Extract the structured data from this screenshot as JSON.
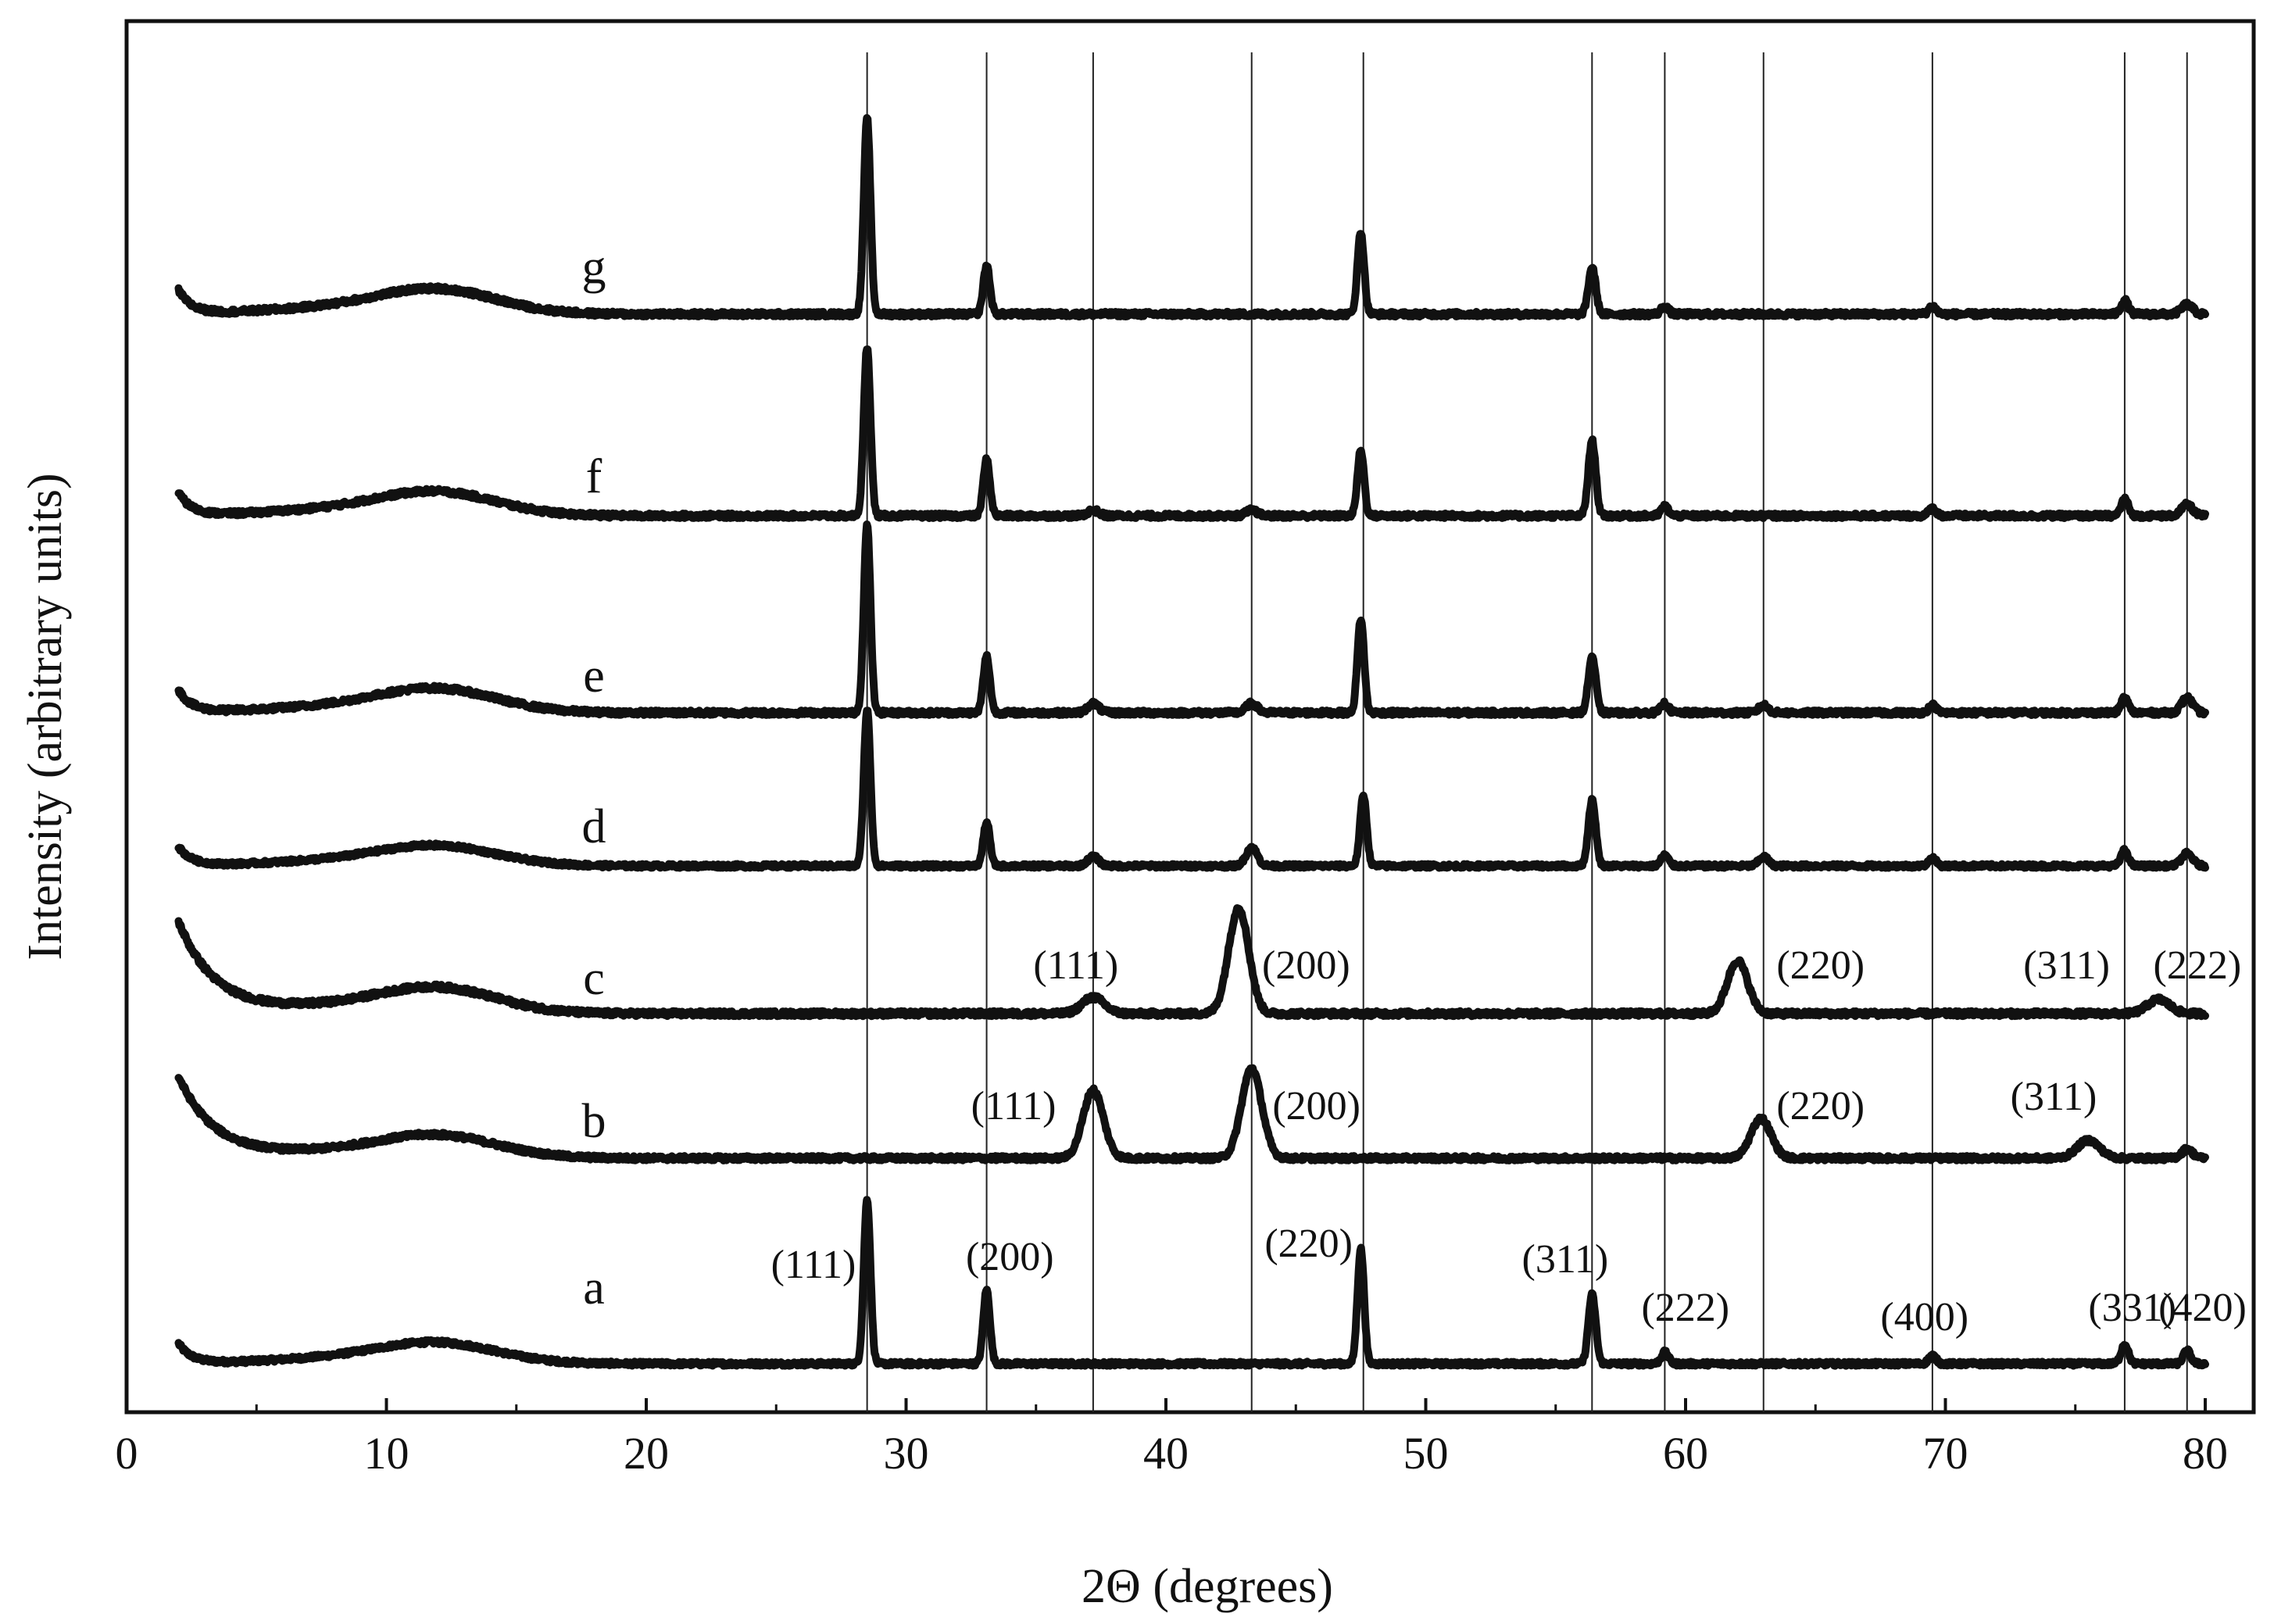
{
  "chart_data": {
    "type": "line",
    "title": "",
    "xlabel": "2Θ (degrees)",
    "ylabel": "Intensity (arbitrary units)",
    "xlim": [
      0,
      82
    ],
    "xticks": [
      0,
      10,
      20,
      30,
      40,
      50,
      60,
      70,
      80
    ],
    "reference_lines_2theta": [
      28.5,
      33.1,
      37.2,
      43.3,
      47.6,
      56.4,
      59.2,
      63.0,
      69.5,
      76.9,
      79.3
    ],
    "series": [
      {
        "name": "a",
        "peaks": [
          {
            "x": 28.5,
            "h": 1.0,
            "w": 0.18
          },
          {
            "x": 33.1,
            "h": 0.45,
            "w": 0.18
          },
          {
            "x": 47.5,
            "h": 0.7,
            "w": 0.18
          },
          {
            "x": 56.4,
            "h": 0.42,
            "w": 0.2
          },
          {
            "x": 59.2,
            "h": 0.07,
            "w": 0.2
          },
          {
            "x": 69.5,
            "h": 0.05,
            "w": 0.2
          },
          {
            "x": 76.9,
            "h": 0.12,
            "w": 0.2
          },
          {
            "x": 79.3,
            "h": 0.08,
            "w": 0.2
          }
        ],
        "peak_labels": [
          {
            "text": "(111)",
            "x": 24.8
          },
          {
            "text": "(200)",
            "x": 32.3
          },
          {
            "text": "(220)",
            "x": 43.8
          },
          {
            "text": "(311)",
            "x": 53.7
          },
          {
            "text": "(222)",
            "x": 58.3
          },
          {
            "text": "(400)",
            "x": 67.5
          },
          {
            "text": "(331)",
            "x": 75.5
          },
          {
            "text": "(420)",
            "x": 78.2
          }
        ]
      },
      {
        "name": "b",
        "peaks": [
          {
            "x": 37.2,
            "h": 0.38,
            "w": 0.55
          },
          {
            "x": 43.3,
            "h": 0.5,
            "w": 0.55
          },
          {
            "x": 62.9,
            "h": 0.22,
            "w": 0.55
          },
          {
            "x": 75.5,
            "h": 0.1,
            "w": 0.6
          },
          {
            "x": 79.3,
            "h": 0.05,
            "w": 0.3
          }
        ],
        "peak_labels": [
          {
            "text": "(111)",
            "x": 32.5
          },
          {
            "text": "(200)",
            "x": 44.1
          },
          {
            "text": "(220)",
            "x": 63.5
          },
          {
            "text": "(311)",
            "x": 72.5
          }
        ]
      },
      {
        "name": "c",
        "peaks": [
          {
            "x": 37.2,
            "h": 0.08,
            "w": 0.6
          },
          {
            "x": 42.8,
            "h": 0.52,
            "w": 0.55
          },
          {
            "x": 62.0,
            "h": 0.26,
            "w": 0.55
          },
          {
            "x": 78.2,
            "h": 0.07,
            "w": 0.6
          }
        ],
        "peak_labels": [
          {
            "text": "(111)",
            "x": 34.9
          },
          {
            "text": "(200)",
            "x": 43.7
          },
          {
            "text": "(220)",
            "x": 63.5
          },
          {
            "text": "(311)",
            "x": 73.0
          },
          {
            "text": "(222)",
            "x": 78.0
          }
        ]
      },
      {
        "name": "d",
        "peaks": [
          {
            "x": 28.5,
            "h": 1.0,
            "w": 0.18
          },
          {
            "x": 33.1,
            "h": 0.28,
            "w": 0.18
          },
          {
            "x": 37.2,
            "h": 0.06,
            "w": 0.3
          },
          {
            "x": 43.3,
            "h": 0.12,
            "w": 0.3
          },
          {
            "x": 47.6,
            "h": 0.45,
            "w": 0.18
          },
          {
            "x": 56.4,
            "h": 0.42,
            "w": 0.2
          },
          {
            "x": 59.2,
            "h": 0.07,
            "w": 0.2
          },
          {
            "x": 63.0,
            "h": 0.06,
            "w": 0.25
          },
          {
            "x": 69.5,
            "h": 0.05,
            "w": 0.2
          },
          {
            "x": 76.9,
            "h": 0.1,
            "w": 0.2
          },
          {
            "x": 79.3,
            "h": 0.08,
            "w": 0.3
          }
        ],
        "peak_labels": []
      },
      {
        "name": "e",
        "peaks": [
          {
            "x": 28.5,
            "h": 1.0,
            "w": 0.18
          },
          {
            "x": 33.1,
            "h": 0.3,
            "w": 0.18
          },
          {
            "x": 37.2,
            "h": 0.05,
            "w": 0.3
          },
          {
            "x": 43.3,
            "h": 0.05,
            "w": 0.3
          },
          {
            "x": 47.5,
            "h": 0.5,
            "w": 0.18
          },
          {
            "x": 56.4,
            "h": 0.3,
            "w": 0.2
          },
          {
            "x": 59.2,
            "h": 0.05,
            "w": 0.2
          },
          {
            "x": 63.0,
            "h": 0.04,
            "w": 0.25
          },
          {
            "x": 69.5,
            "h": 0.04,
            "w": 0.2
          },
          {
            "x": 76.9,
            "h": 0.08,
            "w": 0.2
          },
          {
            "x": 79.3,
            "h": 0.08,
            "w": 0.3
          }
        ],
        "peak_labels": []
      },
      {
        "name": "f",
        "peaks": [
          {
            "x": 28.5,
            "h": 0.9,
            "w": 0.18
          },
          {
            "x": 33.1,
            "h": 0.3,
            "w": 0.18
          },
          {
            "x": 37.2,
            "h": 0.03,
            "w": 0.3
          },
          {
            "x": 43.3,
            "h": 0.03,
            "w": 0.3
          },
          {
            "x": 47.5,
            "h": 0.35,
            "w": 0.18
          },
          {
            "x": 56.4,
            "h": 0.4,
            "w": 0.2
          },
          {
            "x": 59.2,
            "h": 0.05,
            "w": 0.2
          },
          {
            "x": 69.5,
            "h": 0.04,
            "w": 0.2
          },
          {
            "x": 76.9,
            "h": 0.09,
            "w": 0.2
          },
          {
            "x": 79.3,
            "h": 0.06,
            "w": 0.3
          }
        ],
        "peak_labels": []
      },
      {
        "name": "g",
        "peaks": [
          {
            "x": 28.5,
            "h": 1.0,
            "w": 0.18
          },
          {
            "x": 33.1,
            "h": 0.25,
            "w": 0.18
          },
          {
            "x": 47.5,
            "h": 0.42,
            "w": 0.18
          },
          {
            "x": 56.4,
            "h": 0.24,
            "w": 0.2
          },
          {
            "x": 59.2,
            "h": 0.04,
            "w": 0.2
          },
          {
            "x": 69.5,
            "h": 0.04,
            "w": 0.2
          },
          {
            "x": 76.9,
            "h": 0.07,
            "w": 0.2
          },
          {
            "x": 79.3,
            "h": 0.05,
            "w": 0.3
          }
        ],
        "peak_labels": []
      }
    ]
  }
}
